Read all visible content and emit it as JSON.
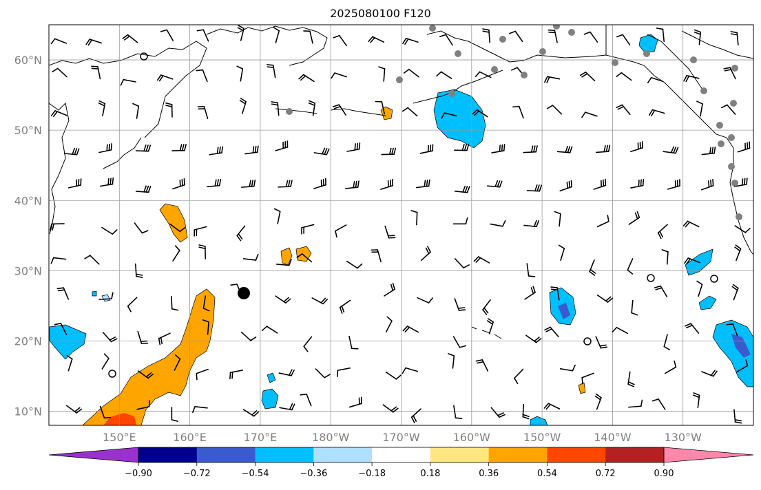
{
  "title": "2025080100 F120",
  "map": {
    "lat_labels": [
      "60°N",
      "50°N",
      "40°N",
      "30°N",
      "20°N",
      "10°N"
    ],
    "lat_values": [
      60,
      50,
      40,
      30,
      20,
      10
    ],
    "lon_labels": [
      "150°E",
      "160°E",
      "170°E",
      "180°W",
      "170°W",
      "160°W",
      "150°W",
      "140°W",
      "130°W"
    ],
    "lon_values": [
      150,
      160,
      170,
      180,
      190,
      200,
      210,
      220,
      230
    ],
    "extent": {
      "lon_min": 140,
      "lon_max": 240,
      "lat_min": 8,
      "lat_max": 65
    },
    "grid": true
  },
  "colorbar": {
    "labels": [
      "−0.90",
      "−0.72",
      "−0.54",
      "−0.36",
      "−0.18",
      "0.18",
      "0.36",
      "0.54",
      "0.72",
      "0.90"
    ],
    "colors": [
      "#9932cc",
      "#00008b",
      "#3a5bcd",
      "#00bfff",
      "#b0e0ff",
      "#ffffff",
      "#ffe680",
      "#ffa500",
      "#ff4500",
      "#b22222",
      "#ff88aa"
    ],
    "extend": "both"
  },
  "colors": {
    "positive_fill": "#ffa500",
    "positive_strong": "#ff4500",
    "negative_fill": "#00bfff",
    "negative_strong": "#3a5bcd",
    "station": "#808080"
  }
}
